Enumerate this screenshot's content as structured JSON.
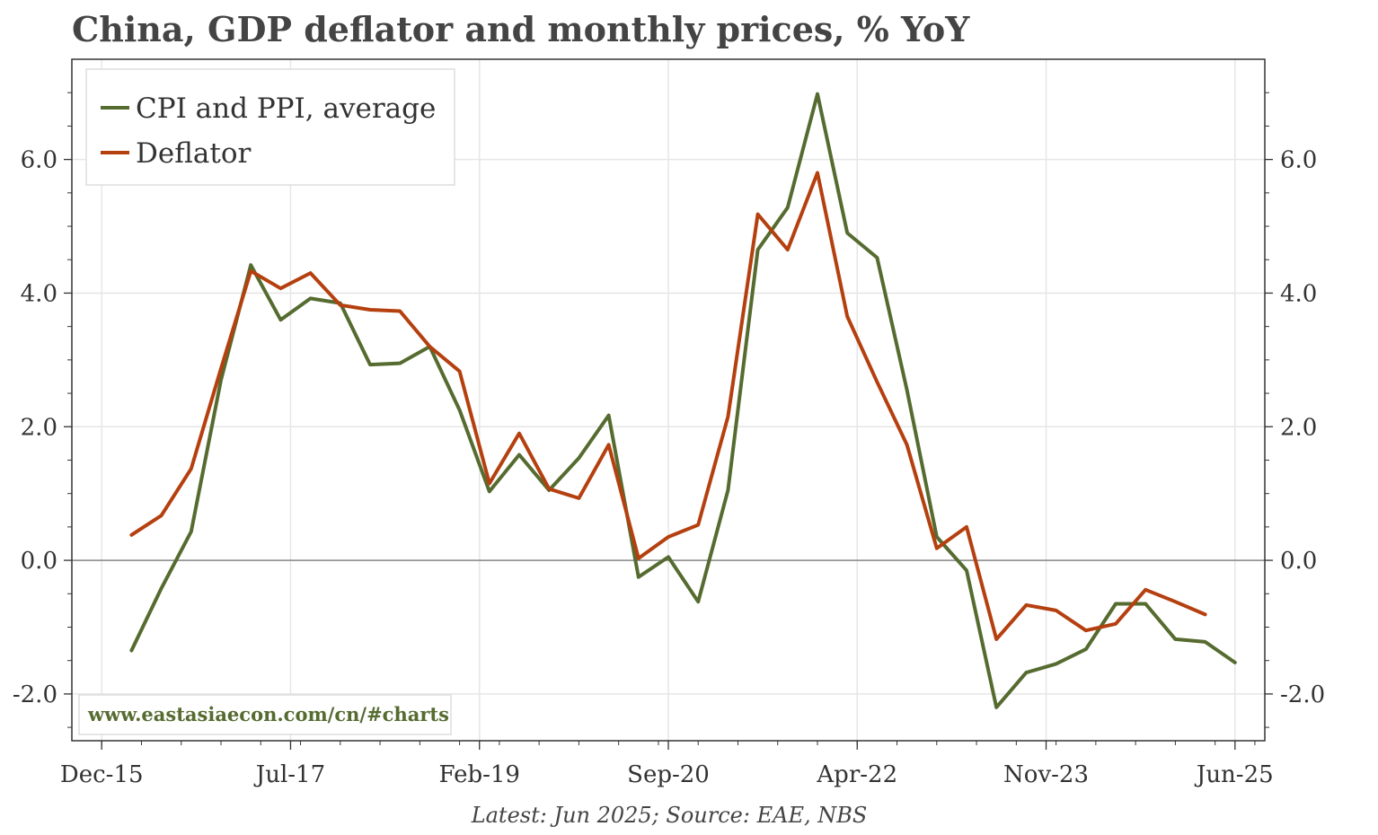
{
  "title": "China, GDP deflator and monthly prices, % YoY",
  "source_note": "Latest: Jun 2025; Source: EAE, NBS",
  "watermark": "www.eastasiaecon.com/cn/#charts",
  "colors": {
    "cpi_ppi": "#556b2f",
    "deflator": "#b5400f",
    "zero_line": "#888888",
    "grid": "#e6e6e6",
    "watermark": "#556b2f"
  },
  "chart_data": {
    "type": "line",
    "xticks": [
      "Dec-15",
      "Jul-17",
      "Feb-19",
      "Sep-20",
      "Apr-22",
      "Nov-23",
      "Jun-25"
    ],
    "yticks": [
      "-2.0",
      "0.0",
      "2.0",
      "4.0",
      "6.0"
    ],
    "ylim": [
      -2.7,
      7.5
    ],
    "xlim": [
      "2015-09",
      "2025-09"
    ],
    "grid": true,
    "legend_position": "top-left",
    "series": [
      {
        "name": "CPI and PPI, average",
        "color": "#556b2f",
        "points": [
          [
            "2016-03",
            -1.35
          ],
          [
            "2016-06",
            -0.42
          ],
          [
            "2016-09",
            0.43
          ],
          [
            "2016-12",
            2.7
          ],
          [
            "2017-03",
            4.42
          ],
          [
            "2017-06",
            3.6
          ],
          [
            "2017-09",
            3.92
          ],
          [
            "2017-12",
            3.85
          ],
          [
            "2018-03",
            2.93
          ],
          [
            "2018-06",
            2.95
          ],
          [
            "2018-09",
            3.2
          ],
          [
            "2018-12",
            2.25
          ],
          [
            "2019-03",
            1.03
          ],
          [
            "2019-06",
            1.58
          ],
          [
            "2019-09",
            1.05
          ],
          [
            "2019-12",
            1.53
          ],
          [
            "2020-03",
            2.17
          ],
          [
            "2020-06",
            -0.25
          ],
          [
            "2020-09",
            0.05
          ],
          [
            "2020-12",
            -0.62
          ],
          [
            "2021-03",
            1.05
          ],
          [
            "2021-06",
            4.65
          ],
          [
            "2021-09",
            5.28
          ],
          [
            "2021-12",
            6.98
          ],
          [
            "2022-03",
            4.9
          ],
          [
            "2022-06",
            4.53
          ],
          [
            "2022-09",
            2.55
          ],
          [
            "2022-12",
            0.35
          ],
          [
            "2023-03",
            -0.15
          ],
          [
            "2023-06",
            -2.2
          ],
          [
            "2023-09",
            -1.68
          ],
          [
            "2023-12",
            -1.55
          ],
          [
            "2024-03",
            -1.33
          ],
          [
            "2024-06",
            -0.65
          ],
          [
            "2024-09",
            -0.65
          ],
          [
            "2024-12",
            -1.18
          ],
          [
            "2025-03",
            -1.22
          ],
          [
            "2025-06",
            -1.53
          ]
        ]
      },
      {
        "name": "Deflator",
        "color": "#b5400f",
        "points": [
          [
            "2016-03",
            0.38
          ],
          [
            "2016-06",
            0.67
          ],
          [
            "2016-09",
            1.37
          ],
          [
            "2016-12",
            2.87
          ],
          [
            "2017-03",
            4.33
          ],
          [
            "2017-06",
            4.07
          ],
          [
            "2017-09",
            4.3
          ],
          [
            "2017-12",
            3.82
          ],
          [
            "2018-03",
            3.75
          ],
          [
            "2018-06",
            3.73
          ],
          [
            "2018-09",
            3.2
          ],
          [
            "2018-12",
            2.83
          ],
          [
            "2019-03",
            1.15
          ],
          [
            "2019-06",
            1.9
          ],
          [
            "2019-09",
            1.07
          ],
          [
            "2019-12",
            0.93
          ],
          [
            "2020-03",
            1.73
          ],
          [
            "2020-06",
            0.03
          ],
          [
            "2020-09",
            0.35
          ],
          [
            "2020-12",
            0.53
          ],
          [
            "2021-03",
            2.15
          ],
          [
            "2021-06",
            5.18
          ],
          [
            "2021-09",
            4.65
          ],
          [
            "2021-12",
            5.8
          ],
          [
            "2022-03",
            3.65
          ],
          [
            "2022-06",
            2.67
          ],
          [
            "2022-09",
            1.73
          ],
          [
            "2022-12",
            0.18
          ],
          [
            "2023-03",
            0.5
          ],
          [
            "2023-06",
            -1.18
          ],
          [
            "2023-09",
            -0.67
          ],
          [
            "2023-12",
            -0.75
          ],
          [
            "2024-03",
            -1.05
          ],
          [
            "2024-06",
            -0.95
          ],
          [
            "2024-09",
            -0.44
          ],
          [
            "2024-12",
            -0.62
          ],
          [
            "2025-03",
            -0.81
          ]
        ]
      }
    ]
  }
}
